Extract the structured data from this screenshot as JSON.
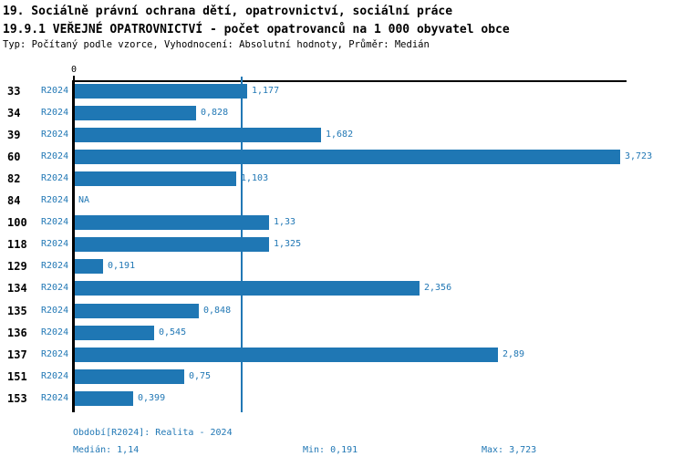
{
  "header": {
    "title_line1": "19. Sociálně právní ochrana dětí, opatrovnictví, sociální práce",
    "title_line2": "19.9.1 VEŘEJNÉ OPATROVNICTVÍ - počet opatrovanců na 1 000 obyvatel obce",
    "subtitle": "Typ: Počítaný podle vzorce, Vyhodnocení: Absolutní hodnoty, Průměr: Medián"
  },
  "chart_data": {
    "type": "bar",
    "orientation": "horizontal",
    "title": "19.9.1 VEŘEJNÉ OPATROVNICTVÍ - počet opatrovanců na 1 000 obyvatel obce",
    "categories": [
      "33",
      "34",
      "39",
      "60",
      "82",
      "84",
      "100",
      "118",
      "129",
      "134",
      "135",
      "136",
      "137",
      "151",
      "153"
    ],
    "series_label": "R2024",
    "values": [
      1.177,
      0.828,
      1.682,
      3.723,
      1.103,
      null,
      1.33,
      1.325,
      0.191,
      2.356,
      0.848,
      0.545,
      2.89,
      0.75,
      0.399
    ],
    "value_labels": [
      "1,177",
      "0,828",
      "1,682",
      "3,723",
      "1,103",
      "NA",
      "1,33",
      "1,325",
      "0,191",
      "2,356",
      "0,848",
      "0,545",
      "2,89",
      "0,75",
      "0,399"
    ],
    "na_label": "NA",
    "x_axis_tick": "0",
    "xlim": [
      0,
      3.723
    ],
    "median_value": 1.14,
    "grid": false,
    "legend": false,
    "bar_color": "#1f77b4",
    "accent_text_color": "#2278b5",
    "median_line_color": "#2278b5"
  },
  "footer": {
    "period": "Období[R2024]: Realita - 2024",
    "median": "Medián: 1,14",
    "min": "Min: 0,191",
    "max": "Max: 3,723"
  }
}
